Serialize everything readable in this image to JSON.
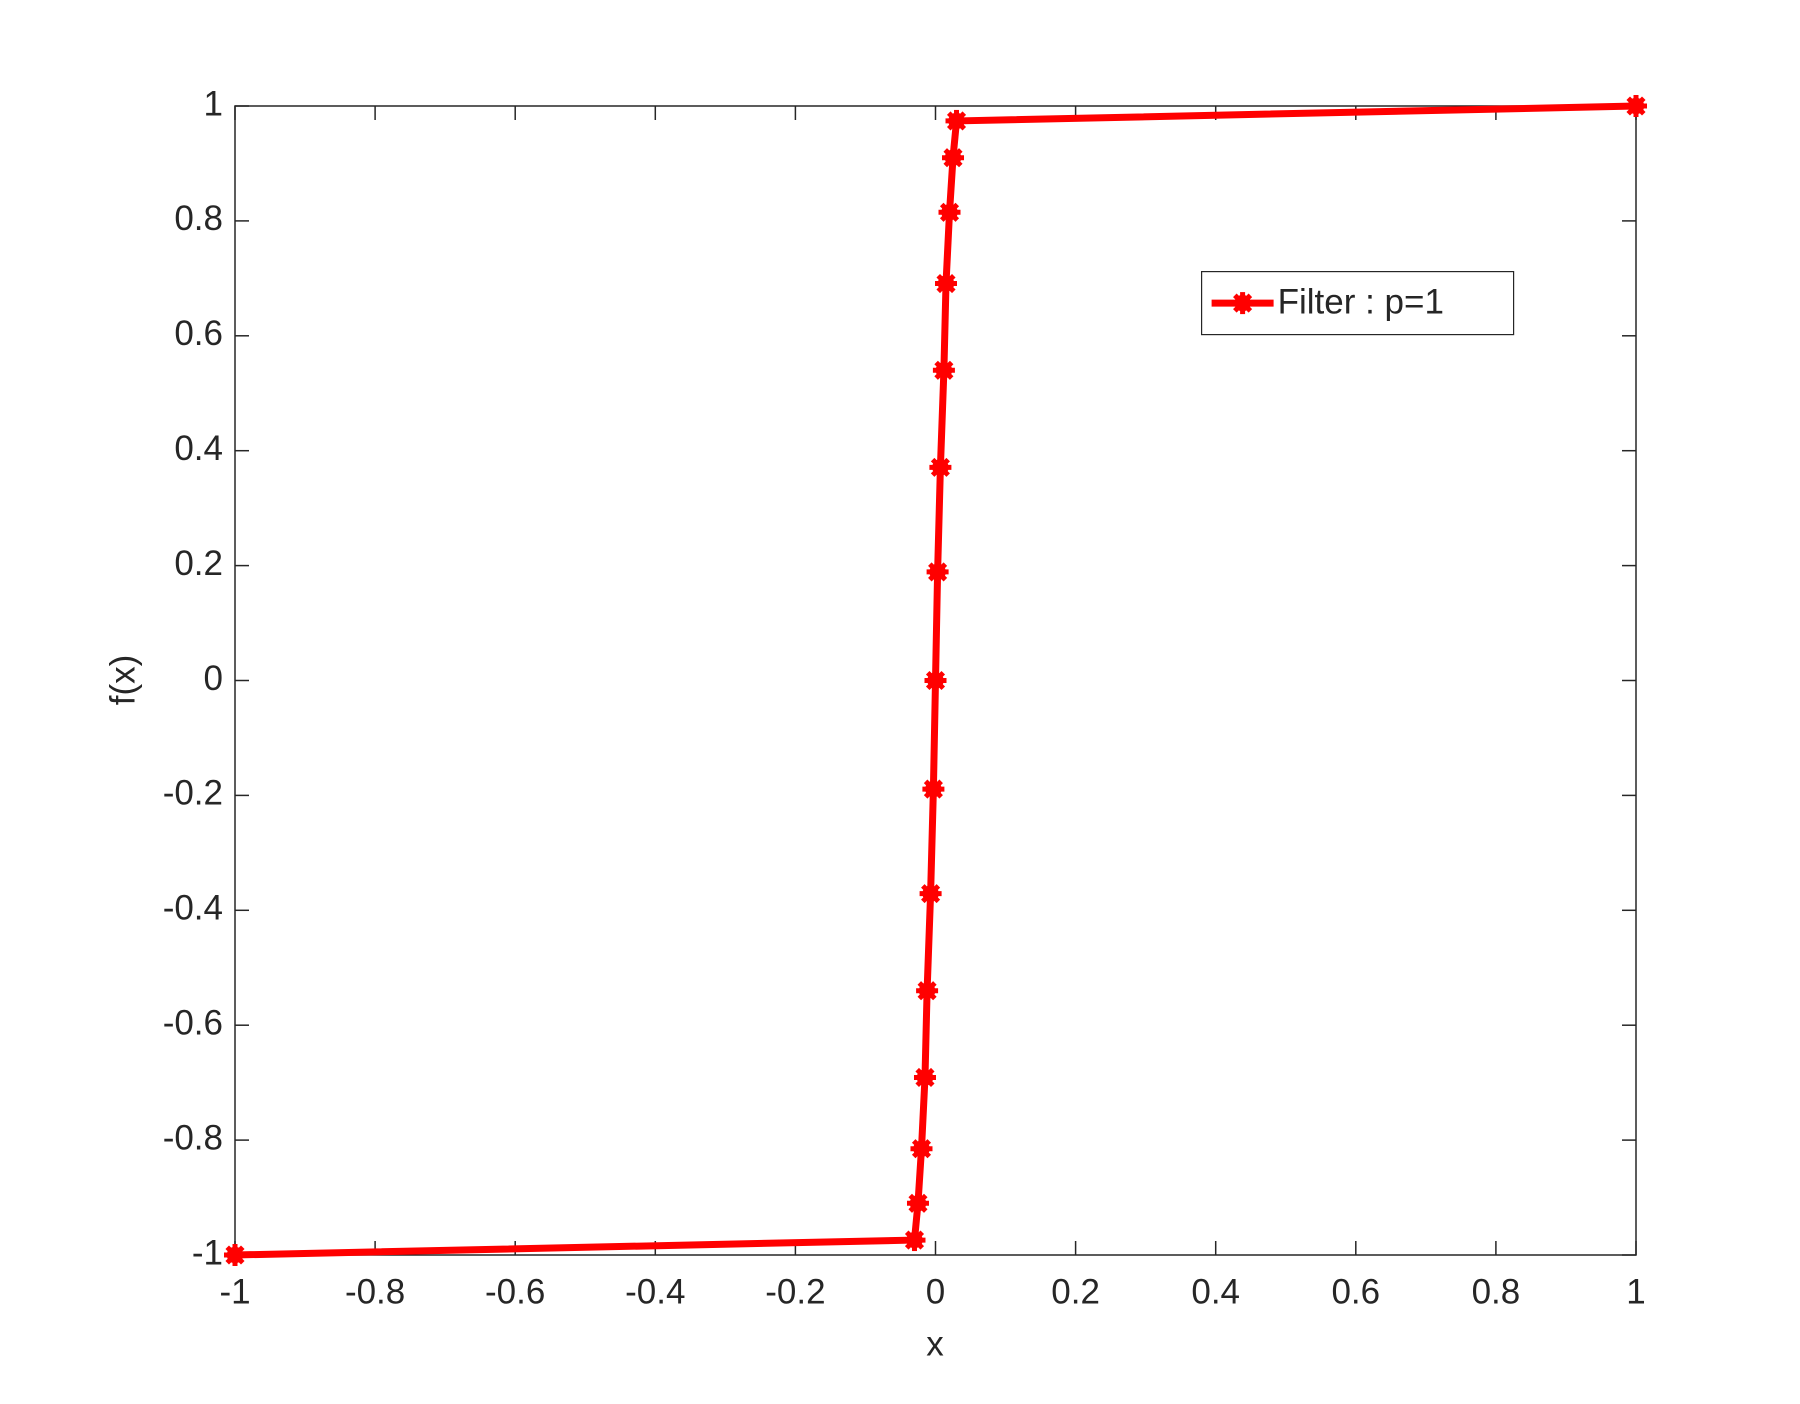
{
  "chart_data": {
    "type": "line",
    "xlabel": "x",
    "ylabel": "f(x)",
    "x": [
      -1,
      -0.03,
      -0.025,
      -0.02,
      -0.015,
      -0.012,
      -0.007,
      -0.003,
      0,
      0.003,
      0.007,
      0.012,
      0.015,
      0.02,
      0.025,
      0.03,
      1
    ],
    "series": [
      {
        "name": "Filter : p=1",
        "color": "#ff0000",
        "values": [
          -1,
          -0.974,
          -0.91,
          -0.815,
          -0.691,
          -0.54,
          -0.371,
          -0.189,
          0,
          0.189,
          0.371,
          0.54,
          0.691,
          0.815,
          0.91,
          0.974,
          1
        ]
      }
    ],
    "xlim": [
      -1,
      1
    ],
    "ylim": [
      -1,
      1
    ],
    "xticks": [
      -1,
      -0.8,
      -0.6,
      -0.4,
      -0.2,
      0,
      0.2,
      0.4,
      0.6,
      0.8,
      1
    ],
    "yticks": [
      -1,
      -0.8,
      -0.6,
      -0.4,
      -0.2,
      0,
      0.2,
      0.4,
      0.6,
      0.8,
      1
    ],
    "grid": false,
    "legend": "upper right"
  }
}
